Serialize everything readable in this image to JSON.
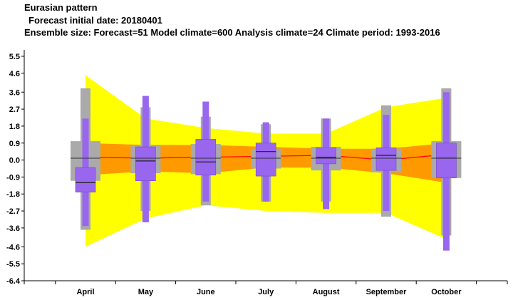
{
  "header": {
    "title": "Eurasian pattern",
    "forecast_line": "Forecast initial date: 20180401",
    "ensemble_line": "Ensemble size: Forecast=51 Model climate=600 Analysis climate=24   Climate period: 1993-2016"
  },
  "colors": {
    "climate_outer": "#ffff00",
    "climate_inner": "#ff9900",
    "climate_median": "#ff0000",
    "analysis_box": "#aaaaaa",
    "forecast_box": "#9966ee",
    "forecast_edge": "#7744cc"
  },
  "chart_data": {
    "type": "box",
    "categories": [
      "April",
      "May",
      "June",
      "July",
      "August",
      "September",
      "October"
    ],
    "yticks": [
      "5.5",
      "4.6",
      "3.6",
      "2.7",
      "1.8",
      "0.9",
      "0.0",
      "-0.9",
      "-1.8",
      "-2.7",
      "-3.6",
      "-4.6",
      "-5.5",
      "-6.4"
    ],
    "ylim": [
      -6.4,
      5.5
    ],
    "model_climate": {
      "p1": [
        -4.6,
        -3.1,
        -2.4,
        -2.7,
        -2.8,
        -2.8,
        -4.2
      ],
      "p25": [
        -0.8,
        -0.6,
        -0.7,
        -0.4,
        -0.4,
        -0.7,
        -1.2
      ],
      "median": [
        0.15,
        0.1,
        0.15,
        0.2,
        0.25,
        0.0,
        0.3
      ],
      "p75": [
        0.9,
        0.8,
        0.8,
        0.7,
        0.6,
        0.6,
        0.9
      ],
      "p99": [
        4.5,
        2.2,
        1.7,
        1.4,
        1.4,
        2.8,
        3.3
      ]
    },
    "analysis_climate": {
      "min": [
        -3.7,
        -2.7,
        -2.4,
        -2.2,
        -2.2,
        -3.0,
        -4.0
      ],
      "q25": [
        -1.1,
        -0.7,
        -0.75,
        -0.45,
        -0.55,
        -0.65,
        -0.95
      ],
      "median": [
        0.1,
        0.1,
        0.1,
        0.1,
        0.1,
        0.1,
        0.1
      ],
      "q75": [
        1.0,
        0.75,
        0.85,
        0.6,
        0.7,
        0.6,
        1.0
      ],
      "max": [
        3.8,
        2.8,
        2.3,
        1.9,
        2.2,
        2.9,
        3.8
      ]
    },
    "forecast": {
      "min": [
        -3.5,
        -3.3,
        -2.2,
        -2.2,
        -2.6,
        -2.7,
        -4.8
      ],
      "q25": [
        -1.7,
        -1.1,
        -0.8,
        -0.85,
        -0.2,
        -0.55,
        -0.95
      ],
      "median": [
        -1.2,
        -0.05,
        -0.1,
        0.45,
        0.15,
        0.25,
        0.1
      ],
      "q75": [
        -0.4,
        0.7,
        1.1,
        0.9,
        0.65,
        0.65,
        0.9
      ],
      "max": [
        2.2,
        3.4,
        3.1,
        2.0,
        2.2,
        2.4,
        3.6
      ]
    }
  }
}
